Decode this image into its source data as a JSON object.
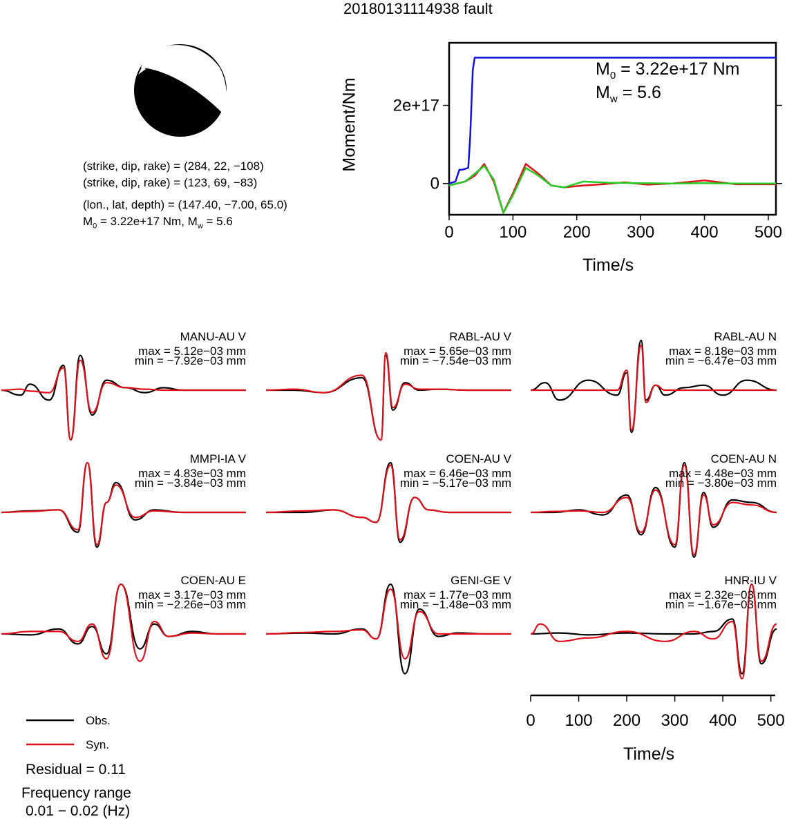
{
  "title": "20180131114938 fault",
  "beachball": {
    "line1": "(strike, dip, rake) = (284, 22, −108)",
    "line2": "(strike, dip, rake) = (123, 69, −83)",
    "line3": "(lon., lat, depth) = (147.40, −7.00, 65.0)",
    "m0_label": "M",
    "m0_sub": "0",
    "m0_rest": " = 3.22e+17 Nm, M",
    "mw_sub": "w",
    "mw_rest": " = 5.6"
  },
  "moment_plot": {
    "ylabel": "Moment/Nm",
    "xlabel": "Time/s",
    "m0_text": " = 3.22e+17 Nm",
    "mw_text": " = 5.6",
    "m_letter": "M",
    "m0_sub": "0",
    "mw_sub": "w"
  },
  "stations": [
    {
      "name": "MANU-AU V",
      "max": "max = 5.12e−03 mm",
      "min": "min = −7.92e−03 mm"
    },
    {
      "name": "RABL-AU V",
      "max": "max = 5.65e−03 mm",
      "min": "min = −7.54e−03 mm"
    },
    {
      "name": "RABL-AU N",
      "max": "max = 8.18e−03 mm",
      "min": "min = −6.47e−03 mm"
    },
    {
      "name": "MMPI-IA V",
      "max": "max = 4.83e−03 mm",
      "min": "min = −3.84e−03 mm"
    },
    {
      "name": "COEN-AU V",
      "max": "max = 6.46e−03 mm",
      "min": "min = −5.17e−03 mm"
    },
    {
      "name": "COEN-AU N",
      "max": "max = 4.48e−03 mm",
      "min": "min = −3.80e−03 mm"
    },
    {
      "name": "COEN-AU E",
      "max": "max = 3.17e−03 mm",
      "min": "min = −2.26e−03 mm"
    },
    {
      "name": "GENI-GE V",
      "max": "max = 1.77e−03 mm",
      "min": "min = −1.48e−03 mm"
    },
    {
      "name": "HNR-IU V",
      "max": "max = 2.32e−03 mm",
      "min": "min = −1.67e−03 mm"
    }
  ],
  "legend": {
    "obs": "Obs.",
    "syn": "Syn.",
    "residual": "Residual = 0.11",
    "freq_title": "Frequency range",
    "freq_range": "0.01 − 0.02 (Hz)"
  },
  "time_axis": {
    "xlabel": "Time/s"
  },
  "colors": {
    "obs": "#000000",
    "syn": "#e0101a",
    "moment": "#1010e0",
    "green": "#22cc22"
  },
  "chart_data": [
    {
      "type": "line",
      "title": "",
      "xlabel": "Time/s",
      "ylabel": "Moment/Nm",
      "xlim": [
        0,
        512
      ],
      "ylim": [
        -8e+16,
        3.6e+17
      ],
      "xticks": [
        0,
        100,
        200,
        300,
        400,
        500
      ],
      "yticks": [
        {
          "value": 0,
          "label": "0"
        },
        {
          "value": 2e+17,
          "label": "2e+17"
        }
      ],
      "series": [
        {
          "color": "#1010e0",
          "x": [
            0,
            10,
            16,
            20,
            30,
            33,
            37,
            40,
            512
          ],
          "y": [
            0,
            5000000000000000.0,
            3.5e+16,
            3.5e+16,
            4e+16,
            1.2e+17,
            2.9e+17,
            3.22e+17,
            3.22e+17
          ]
        },
        {
          "color": "#22cc22",
          "x": [
            0,
            25,
            40,
            55,
            70,
            85,
            100,
            120,
            140,
            160,
            180,
            210,
            250,
            300,
            350,
            400,
            450,
            512
          ],
          "y": [
            -5000000000000000.0,
            5000000000000000.0,
            2.5e+16,
            4.5e+16,
            1e+16,
            -7.5e+16,
            -3e+16,
            4e+16,
            2e+16,
            -5000000000000000.0,
            -1e+16,
            5000000000000000.0,
            2000000000000000.0,
            1000000000000000.0,
            0.0,
            1000000000000000.0,
            0.0,
            0.0
          ]
        },
        {
          "color": "#e0101a",
          "x": [
            0,
            25,
            40,
            55,
            70,
            85,
            100,
            120,
            140,
            160,
            180,
            210,
            240,
            275,
            310,
            350,
            400,
            450,
            512
          ],
          "y": [
            -5000000000000000.0,
            5000000000000000.0,
            2e+16,
            5e+16,
            5000000000000000.0,
            -7.5e+16,
            -2.5e+16,
            5e+16,
            2.5e+16,
            -5000000000000000.0,
            -1e+16,
            -5000000000000000.0,
            -2000000000000000.0,
            3000000000000000.0,
            -3000000000000000.0,
            0.0,
            8000000000000000.0,
            -2000000000000000.0,
            -2000000000000000.0
          ]
        }
      ]
    },
    {
      "type": "line",
      "title": "",
      "xlabel": "Time/s",
      "xlim": [
        0,
        512
      ],
      "xticks": [
        0,
        100,
        200,
        300,
        400,
        500
      ],
      "note_units": "normalized amplitude, -1 to 1",
      "waveforms": [
        {
          "station": "MANU-AU V",
          "obs": {
            "t": [
              0,
              40,
              60,
              100,
              130,
              145,
              165,
              190,
              220,
              260,
              300,
              340,
              380,
              420,
              512
            ],
            "a": [
              0,
              -0.1,
              0.12,
              -0.2,
              0.5,
              -1,
              0.7,
              -0.5,
              0.2,
              0.05,
              -0.05,
              0.05,
              0,
              0,
              0
            ]
          },
          "syn": {
            "t": [
              0,
              40,
              60,
              100,
              130,
              145,
              165,
              190,
              220,
              260,
              300,
              340,
              380,
              420,
              512
            ],
            "a": [
              0,
              0.02,
              -0.02,
              -0.05,
              0.45,
              -1,
              0.6,
              -0.45,
              0.15,
              0.05,
              0.02,
              0,
              0,
              0,
              0
            ]
          }
        },
        {
          "station": "RABL-AU V",
          "obs": {
            "t": [
              0,
              60,
              120,
              200,
              240,
              250,
              265,
              290,
              320,
              360,
              420,
              512
            ],
            "a": [
              0,
              0,
              -0.05,
              0.25,
              -1,
              0.7,
              -0.4,
              0.15,
              0,
              0.02,
              0,
              0
            ]
          },
          "syn": {
            "t": [
              0,
              60,
              120,
              200,
              240,
              250,
              265,
              290,
              320,
              360,
              420,
              512
            ],
            "a": [
              0,
              0.02,
              -0.05,
              0.3,
              -1,
              0.75,
              -0.35,
              0.12,
              0.02,
              0.02,
              0,
              0
            ]
          }
        },
        {
          "station": "RABL-AU N",
          "obs": {
            "t": [
              0,
              30,
              60,
              120,
              180,
              200,
              210,
              230,
              240,
              260,
              280,
              320,
              360,
              400,
              450,
              512
            ],
            "a": [
              0,
              0.15,
              -0.2,
              0.2,
              -0.1,
              0.35,
              -0.85,
              1,
              -0.2,
              0.1,
              -0.1,
              0.05,
              0.1,
              -0.1,
              0.2,
              0
            ]
          },
          "syn": {
            "t": [
              0,
              30,
              60,
              120,
              180,
              200,
              210,
              230,
              240,
              260,
              280,
              320,
              360,
              400,
              450,
              512
            ],
            "a": [
              0,
              0,
              0,
              0,
              0,
              0.4,
              -0.8,
              0.9,
              -0.25,
              0.1,
              0,
              0,
              0,
              0,
              0,
              0
            ]
          }
        },
        {
          "station": "MMPI-IA V",
          "obs": {
            "t": [
              0,
              60,
              120,
              160,
              180,
              200,
              220,
              240,
              280,
              320,
              380,
              512
            ],
            "a": [
              0,
              0.03,
              0.05,
              -0.4,
              1,
              -0.7,
              0.2,
              0.6,
              -0.15,
              0.05,
              0,
              0
            ]
          },
          "syn": {
            "t": [
              0,
              60,
              120,
              160,
              180,
              200,
              220,
              240,
              280,
              320,
              380,
              512
            ],
            "a": [
              0,
              0.02,
              0.05,
              -0.35,
              1,
              -0.65,
              0.2,
              0.55,
              -0.1,
              0.03,
              0,
              0
            ]
          }
        },
        {
          "station": "COEN-AU V",
          "obs": {
            "t": [
              0,
              80,
              140,
              200,
              230,
              260,
              280,
              310,
              340,
              380,
              430,
              512
            ],
            "a": [
              0,
              0,
              0.05,
              -0.1,
              -0.2,
              1,
              -0.6,
              0.3,
              0.05,
              0,
              0,
              0
            ]
          },
          "syn": {
            "t": [
              0,
              80,
              140,
              200,
              230,
              260,
              280,
              310,
              340,
              380,
              430,
              512
            ],
            "a": [
              0,
              0.03,
              0.05,
              -0.1,
              -0.2,
              0.95,
              -0.55,
              0.3,
              0.05,
              0,
              0,
              0
            ]
          }
        },
        {
          "station": "COEN-AU N",
          "obs": {
            "t": [
              0,
              50,
              100,
              150,
              200,
              230,
              260,
              300,
              320,
              340,
              360,
              380,
              420,
              460,
              512
            ],
            "a": [
              0,
              0,
              0.05,
              -0.05,
              0.35,
              -0.45,
              0.5,
              -0.7,
              1,
              -0.9,
              0.4,
              -0.3,
              0.25,
              0.2,
              0
            ]
          },
          "syn": {
            "t": [
              0,
              50,
              100,
              150,
              200,
              230,
              260,
              300,
              320,
              340,
              360,
              380,
              420,
              460,
              512
            ],
            "a": [
              0,
              0.02,
              0.03,
              0,
              0.3,
              -0.4,
              0.45,
              -0.65,
              0.95,
              -0.85,
              0.35,
              -0.25,
              0.2,
              0.15,
              0
            ]
          }
        },
        {
          "station": "COEN-AU E",
          "obs": {
            "t": [
              0,
              60,
              120,
              160,
              190,
              220,
              250,
              290,
              320,
              350,
              400,
              450,
              512
            ],
            "a": [
              0,
              -0.02,
              0.1,
              -0.2,
              0.15,
              -0.4,
              1,
              -0.3,
              0.2,
              -0.05,
              0.05,
              0,
              0
            ]
          },
          "syn": {
            "t": [
              0,
              60,
              120,
              160,
              190,
              220,
              250,
              290,
              320,
              350,
              400,
              450,
              512
            ],
            "a": [
              0,
              0.05,
              0.05,
              -0.15,
              0.2,
              -0.5,
              1,
              -0.55,
              0.25,
              -0.05,
              0.02,
              0,
              0
            ]
          }
        },
        {
          "station": "GENI-GE V",
          "obs": {
            "t": [
              0,
              80,
              140,
              200,
              230,
              260,
              290,
              320,
              360,
              400,
              460,
              512
            ],
            "a": [
              0,
              0.02,
              0,
              0.1,
              -0.1,
              1,
              -0.8,
              0.5,
              -0.05,
              0.02,
              0,
              0
            ]
          },
          "syn": {
            "t": [
              0,
              80,
              140,
              200,
              230,
              260,
              290,
              320,
              360,
              400,
              460,
              512
            ],
            "a": [
              0,
              0.03,
              0.05,
              0.08,
              -0.1,
              0.9,
              -0.5,
              0.45,
              0,
              0,
              0,
              0
            ]
          }
        },
        {
          "station": "HNR-IU V",
          "obs": {
            "t": [
              0,
              60,
              120,
              200,
              280,
              340,
              380,
              420,
              440,
              460,
              480,
              512
            ],
            "a": [
              0,
              0.02,
              -0.02,
              0.02,
              0,
              0,
              0.05,
              0.3,
              -0.8,
              1,
              -0.6,
              0.1
            ]
          },
          "syn": {
            "t": [
              0,
              20,
              60,
              120,
              200,
              280,
              340,
              380,
              420,
              440,
              460,
              480,
              512
            ],
            "a": [
              0,
              0.2,
              -0.15,
              -0.08,
              0.05,
              -0.15,
              0.05,
              -0.1,
              0.25,
              -0.9,
              1,
              -0.55,
              0.2
            ]
          }
        }
      ]
    }
  ]
}
